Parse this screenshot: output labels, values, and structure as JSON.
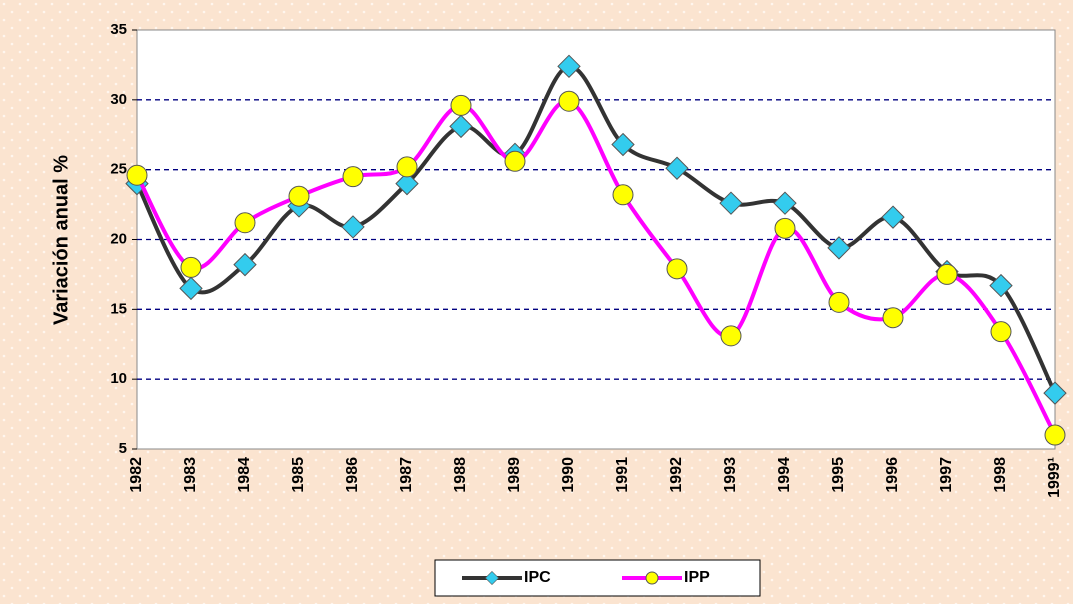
{
  "chart_data": {
    "type": "line",
    "y_label": "Variación anual %",
    "categories": [
      "1982",
      "1983",
      "1984",
      "1985",
      "1986",
      "1987",
      "1988",
      "1989",
      "1990",
      "1991",
      "1992",
      "1993",
      "1994",
      "1995",
      "1996",
      "1997",
      "1998",
      "1999¹"
    ],
    "series": [
      {
        "name": "IPC",
        "color": "#333333",
        "marker": "diamond",
        "marker_color": "#33ccee",
        "values": [
          24,
          16.5,
          18.2,
          22.4,
          20.9,
          24,
          28.1,
          26.1,
          32.4,
          26.8,
          25.1,
          22.6,
          22.6,
          19.4,
          21.6,
          17.7,
          16.7,
          9
        ]
      },
      {
        "name": "IPP",
        "color": "#ff00ff",
        "marker": "circle",
        "marker_color": "#ffff00",
        "values": [
          24.6,
          18,
          21.2,
          23.1,
          24.5,
          25.2,
          29.6,
          25.6,
          29.9,
          23.2,
          17.9,
          13.1,
          20.8,
          15.5,
          14.4,
          17.5,
          13.4,
          6
        ]
      }
    ],
    "ylim": [
      5,
      35
    ],
    "yticks": [
      5,
      10,
      15,
      20,
      25,
      30,
      35
    ],
    "grid": true,
    "legend": "bottom"
  }
}
